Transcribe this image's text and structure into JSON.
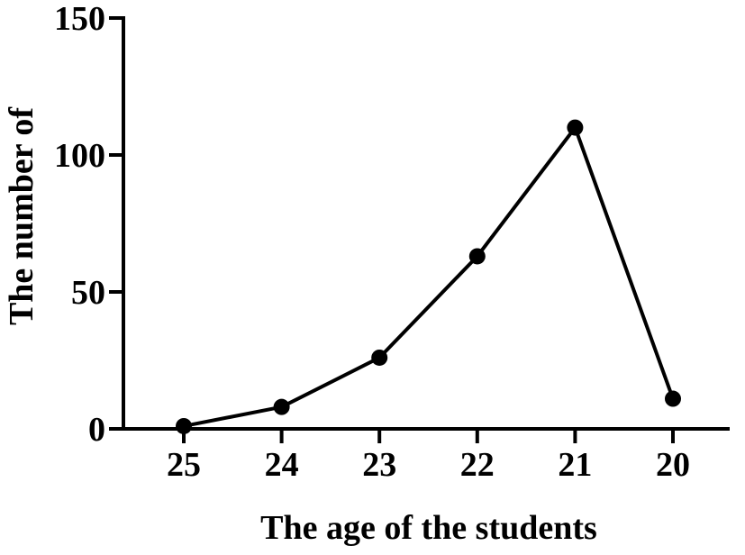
{
  "chart_data": {
    "type": "line",
    "xlabel": "The age of the students",
    "ylabel": "The number of",
    "categories": [
      "25",
      "24",
      "23",
      "22",
      "21",
      "20"
    ],
    "values": [
      1,
      8,
      26,
      63,
      110,
      11
    ],
    "ylim": [
      0,
      150
    ],
    "yticks": [
      "0",
      "50",
      "100",
      "150"
    ],
    "grid": false,
    "legend": "none"
  }
}
